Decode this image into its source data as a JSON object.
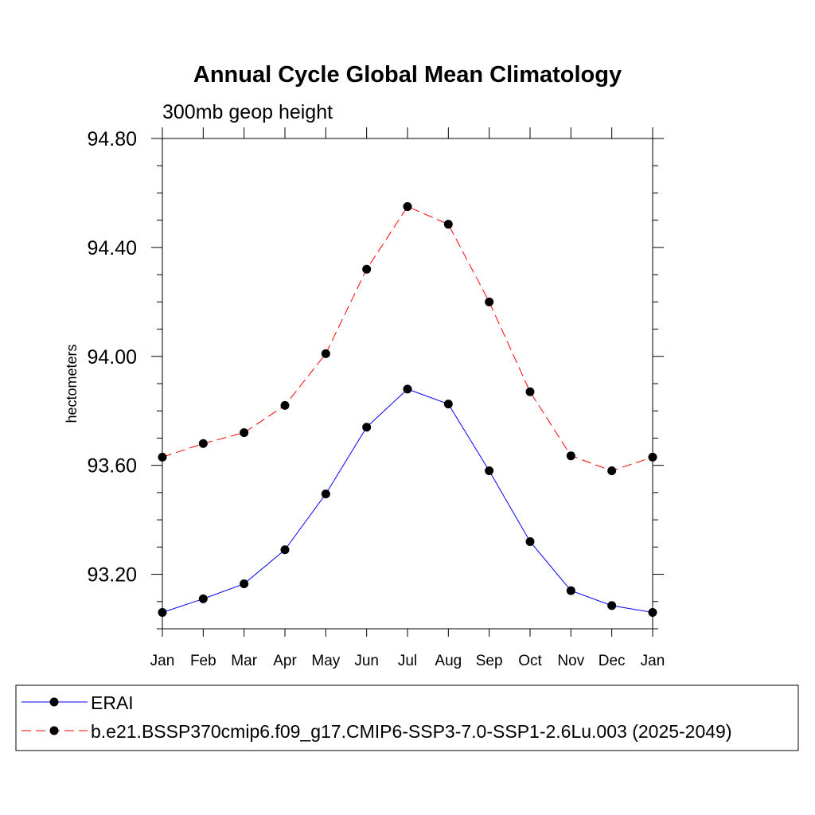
{
  "chart_data": {
    "type": "line",
    "title": "Annual Cycle Global Mean Climatology",
    "subtitle": "300mb geop height",
    "ylabel": "hectometers",
    "xlabel": "",
    "categories": [
      "Jan",
      "Feb",
      "Mar",
      "Apr",
      "May",
      "Jun",
      "Jul",
      "Aug",
      "Sep",
      "Oct",
      "Nov",
      "Dec",
      "Jan"
    ],
    "ylim": [
      93.0,
      94.8
    ],
    "yticks_major": [
      "93.20",
      "93.60",
      "94.00",
      "94.40",
      "94.80"
    ],
    "yticks_major_values": [
      93.2,
      93.6,
      94.0,
      94.4,
      94.8
    ],
    "ytick_minor_step": 0.1,
    "series": [
      {
        "name": "ERAI",
        "color": "#0000ff",
        "dash": "solid",
        "marker": "circle",
        "values": [
          93.06,
          93.11,
          93.165,
          93.29,
          93.495,
          93.74,
          93.88,
          93.825,
          93.58,
          93.32,
          93.14,
          93.085,
          93.06
        ]
      },
      {
        "name": "b.e21.BSSP370cmip6.f09_g17.CMIP6-SSP3-7.0-SSP1-2.6Lu.003 (2025-2049)",
        "color": "#ff0000",
        "dash": "dashed",
        "marker": "circle",
        "values": [
          93.63,
          93.68,
          93.72,
          93.82,
          94.01,
          94.32,
          94.55,
          94.485,
          94.2,
          93.87,
          93.635,
          93.58,
          93.63
        ]
      }
    ],
    "legend_position": "bottom"
  }
}
